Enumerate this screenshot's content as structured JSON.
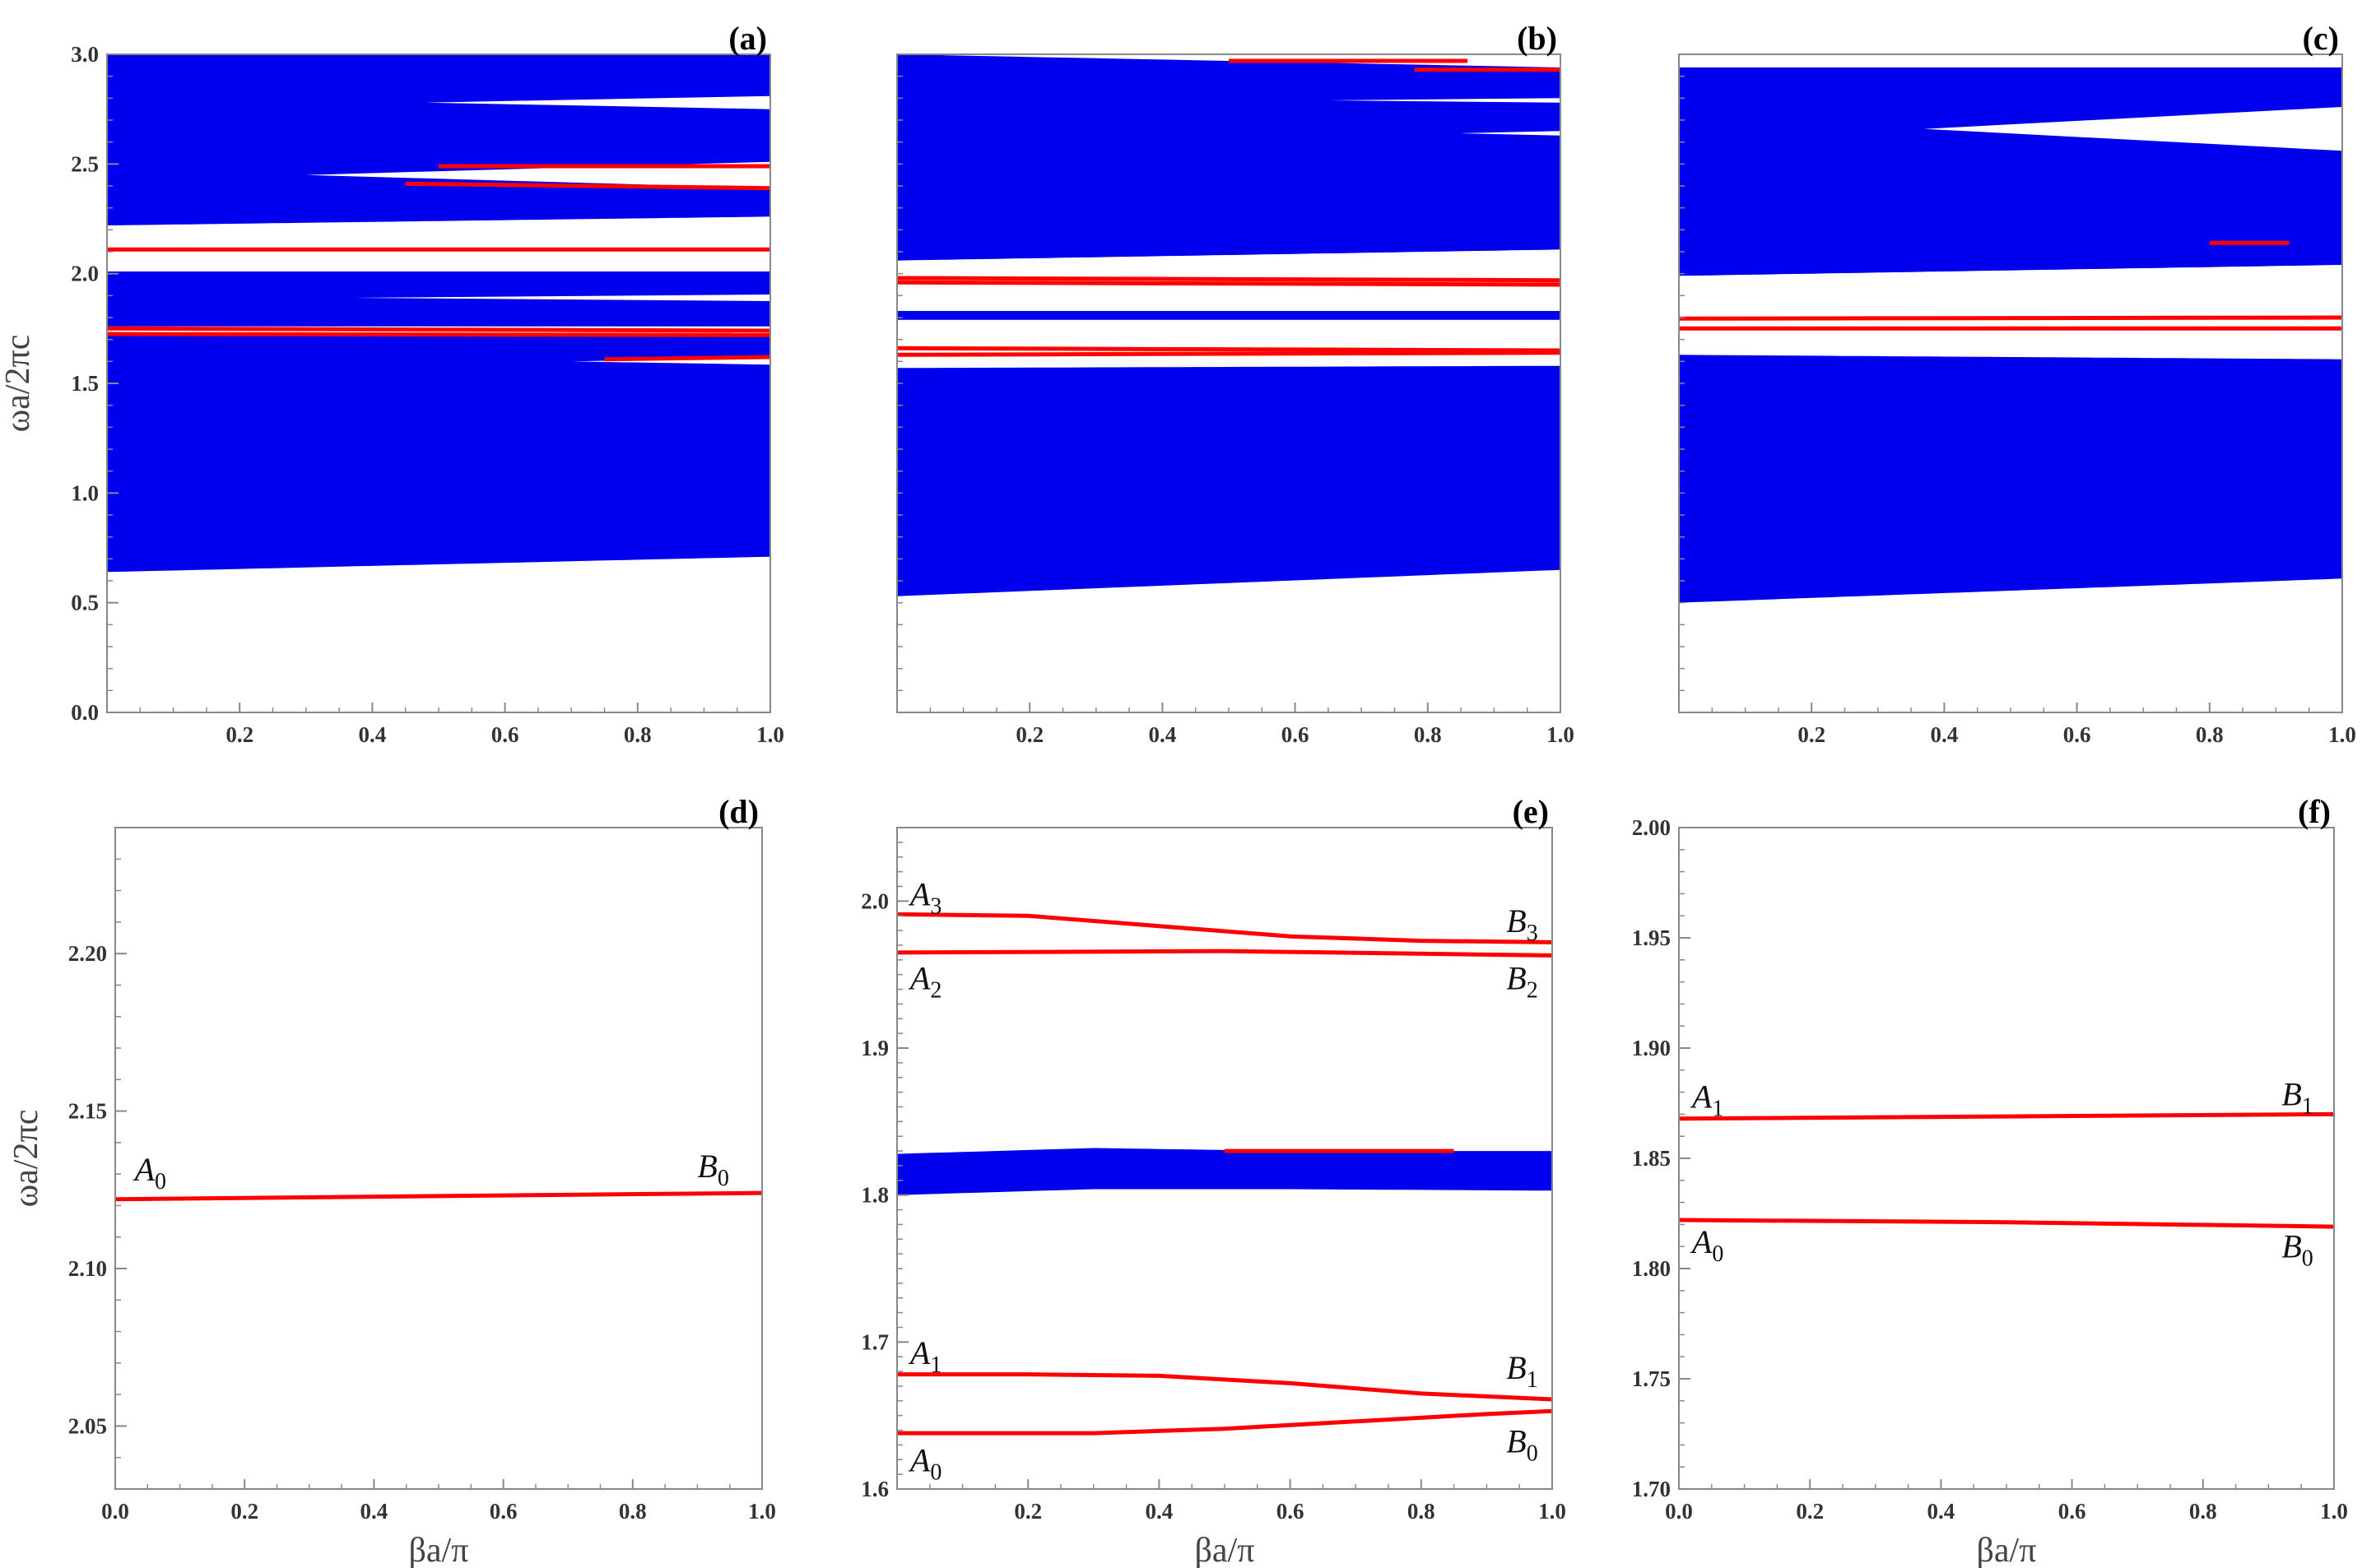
{
  "figure": {
    "ylabel": "ωa/2πc",
    "xlabel": "βa/π",
    "colors": {
      "band": "#0000ee",
      "mode": "#ff0000",
      "axis": "#888888"
    }
  },
  "chart_data": [
    {
      "type": "area",
      "panel": "(a)",
      "xlim": [
        0,
        1
      ],
      "ylim": [
        0,
        3
      ],
      "xticks": [
        {
          "v": 0.2,
          "t": "0.2"
        },
        {
          "v": 0.4,
          "t": "0.4"
        },
        {
          "v": 0.6,
          "t": "0.6"
        },
        {
          "v": 0.8,
          "t": "0.8"
        },
        {
          "v": 1.0,
          "t": "1.0"
        }
      ],
      "yticks": [
        {
          "v": 0,
          "t": "0.0"
        },
        {
          "v": 0.5,
          "t": "0.5"
        },
        {
          "v": 1.0,
          "t": "1.0"
        },
        {
          "v": 1.5,
          "t": "1.5"
        },
        {
          "v": 2.0,
          "t": "2.0"
        },
        {
          "v": 2.5,
          "t": "2.5"
        },
        {
          "v": 3.0,
          "t": "3.0"
        }
      ],
      "ylabel": "ωa/2πc",
      "xlabel": "",
      "bands": [
        {
          "lower": [
            [
              0,
              0.64
            ],
            [
              1,
              0.71
            ]
          ],
          "upper": [
            [
              0,
              1.72
            ],
            [
              1,
              1.72
            ]
          ]
        },
        {
          "lower": [
            [
              0,
              1.76
            ],
            [
              1,
              1.76
            ]
          ],
          "upper": [
            [
              0,
              2.01
            ],
            [
              1,
              2.01
            ]
          ]
        },
        {
          "lower": [
            [
              0,
              2.22
            ],
            [
              1,
              2.26
            ]
          ],
          "upper": [
            [
              0,
              3.0
            ],
            [
              1,
              3.0
            ]
          ]
        }
      ],
      "gaps": [
        {
          "y": 2.78,
          "x0": 0.48,
          "x1": 1.0,
          "w0": 0.0,
          "w1": 0.06
        },
        {
          "y": 2.45,
          "x0": 0.3,
          "x1": 1.0,
          "w0": 0.0,
          "w1": 0.12
        },
        {
          "y": 1.89,
          "x0": 0.37,
          "x1": 1.0,
          "w0": 0.0,
          "w1": 0.03
        },
        {
          "y": 1.6,
          "x0": 0.7,
          "x1": 1.0,
          "w0": 0.0,
          "w1": 0.03
        }
      ],
      "modes": [
        {
          "points": [
            [
              0,
              2.11
            ],
            [
              1,
              2.11
            ]
          ]
        },
        {
          "points": [
            [
              0,
              1.75
            ],
            [
              1,
              1.74
            ]
          ]
        },
        {
          "points": [
            [
              0,
              1.725
            ],
            [
              1,
              1.72
            ]
          ]
        },
        {
          "points": [
            [
              0.5,
              2.49
            ],
            [
              1,
              2.49
            ]
          ]
        },
        {
          "points": [
            [
              0.45,
              2.41
            ],
            [
              1,
              2.39
            ]
          ]
        },
        {
          "points": [
            [
              0.75,
              1.61
            ],
            [
              1,
              1.62
            ]
          ]
        }
      ],
      "labels": []
    },
    {
      "type": "area",
      "panel": "(b)",
      "xlim": [
        0,
        1
      ],
      "ylim": [
        0,
        3
      ],
      "xticks": [
        {
          "v": 0.2,
          "t": "0.2"
        },
        {
          "v": 0.4,
          "t": "0.4"
        },
        {
          "v": 0.6,
          "t": "0.6"
        },
        {
          "v": 0.8,
          "t": "0.8"
        },
        {
          "v": 1.0,
          "t": "1.0"
        }
      ],
      "yticks": [],
      "ylabel": "",
      "xlabel": "",
      "bands": [
        {
          "lower": [
            [
              0,
              0.53
            ],
            [
              1,
              0.65
            ]
          ],
          "upper": [
            [
              0,
              1.57
            ],
            [
              1,
              1.58
            ]
          ]
        },
        {
          "lower": [
            [
              0,
              1.79
            ],
            [
              1,
              1.79
            ]
          ],
          "upper": [
            [
              0,
              1.83
            ],
            [
              1,
              1.83
            ]
          ]
        },
        {
          "lower": [
            [
              0,
              2.06
            ],
            [
              1,
              2.11
            ]
          ],
          "upper": [
            [
              0,
              3.0
            ],
            [
              1,
              2.94
            ]
          ]
        }
      ],
      "gaps": [
        {
          "y": 2.79,
          "x0": 0.65,
          "x1": 1.0,
          "w0": 0.0,
          "w1": 0.02
        },
        {
          "y": 2.64,
          "x0": 0.85,
          "x1": 1.0,
          "w0": 0.0,
          "w1": 0.02
        }
      ],
      "modes": [
        {
          "points": [
            [
              0,
              1.98
            ],
            [
              1,
              1.97
            ]
          ]
        },
        {
          "points": [
            [
              0,
              1.96
            ],
            [
              1,
              1.95
            ]
          ]
        },
        {
          "points": [
            [
              0,
              1.66
            ],
            [
              1,
              1.65
            ]
          ]
        },
        {
          "points": [
            [
              0,
              1.63
            ],
            [
              1,
              1.64
            ]
          ]
        },
        {
          "points": [
            [
              0.5,
              2.97
            ],
            [
              0.86,
              2.97
            ]
          ]
        },
        {
          "points": [
            [
              0.78,
              2.93
            ],
            [
              1,
              2.93
            ]
          ]
        }
      ],
      "labels": []
    },
    {
      "type": "area",
      "panel": "(c)",
      "xlim": [
        0,
        1
      ],
      "ylim": [
        0,
        3
      ],
      "xticks": [
        {
          "v": 0.2,
          "t": "0.2"
        },
        {
          "v": 0.4,
          "t": "0.4"
        },
        {
          "v": 0.6,
          "t": "0.6"
        },
        {
          "v": 0.8,
          "t": "0.8"
        },
        {
          "v": 1.0,
          "t": "1.0"
        }
      ],
      "yticks": [],
      "ylabel": "",
      "xlabel": "",
      "bands": [
        {
          "lower": [
            [
              0,
              0.5
            ],
            [
              1,
              0.61
            ]
          ],
          "upper": [
            [
              0,
              1.63
            ],
            [
              1,
              1.61
            ]
          ]
        },
        {
          "lower": [
            [
              0,
              1.99
            ],
            [
              1,
              2.04
            ]
          ],
          "upper": [
            [
              0,
              2.94
            ],
            [
              1,
              2.94
            ]
          ]
        }
      ],
      "gaps": [
        {
          "y": 2.66,
          "x0": 0.37,
          "x1": 1.0,
          "w0": 0.0,
          "w1": 0.2
        }
      ],
      "modes": [
        {
          "points": [
            [
              0,
              1.795
            ],
            [
              1,
              1.8
            ]
          ]
        },
        {
          "points": [
            [
              0,
              1.75
            ],
            [
              1,
              1.75
            ]
          ]
        },
        {
          "points": [
            [
              0.8,
              2.14
            ],
            [
              0.92,
              2.14
            ]
          ]
        }
      ],
      "labels": []
    },
    {
      "type": "line",
      "panel": "(d)",
      "xlim": [
        0,
        1
      ],
      "ylim": [
        2.03,
        2.24
      ],
      "xticks": [
        {
          "v": 0,
          "t": "0.0"
        },
        {
          "v": 0.2,
          "t": "0.2"
        },
        {
          "v": 0.4,
          "t": "0.4"
        },
        {
          "v": 0.6,
          "t": "0.6"
        },
        {
          "v": 0.8,
          "t": "0.8"
        },
        {
          "v": 1.0,
          "t": "1.0"
        }
      ],
      "yticks": [
        {
          "v": 2.05,
          "t": "2.05"
        },
        {
          "v": 2.1,
          "t": "2.10"
        },
        {
          "v": 2.15,
          "t": "2.15"
        },
        {
          "v": 2.2,
          "t": "2.20"
        }
      ],
      "ylabel": "ωa/2πc",
      "xlabel": "βa/π",
      "bands": [],
      "gaps": [],
      "modes": [
        {
          "points": [
            [
              0,
              2.122
            ],
            [
              0.5,
              2.123
            ],
            [
              1,
              2.124
            ]
          ]
        }
      ],
      "labels": [
        {
          "base": "A",
          "sub": "0",
          "x": 0.03,
          "y": 2.128
        },
        {
          "base": "B",
          "sub": "0",
          "x": 0.9,
          "y": 2.129
        }
      ]
    },
    {
      "type": "line",
      "panel": "(e)",
      "xlim": [
        0,
        1
      ],
      "ylim": [
        1.6,
        2.05
      ],
      "xticks": [
        {
          "v": 0.2,
          "t": "0.2"
        },
        {
          "v": 0.4,
          "t": "0.4"
        },
        {
          "v": 0.6,
          "t": "0.6"
        },
        {
          "v": 0.8,
          "t": "0.8"
        },
        {
          "v": 1.0,
          "t": "1.0"
        }
      ],
      "yticks": [
        {
          "v": 1.6,
          "t": "1.6"
        },
        {
          "v": 1.7,
          "t": "1.7"
        },
        {
          "v": 1.8,
          "t": "1.8"
        },
        {
          "v": 1.9,
          "t": "1.9"
        },
        {
          "v": 2.0,
          "t": "2.0"
        }
      ],
      "ylabel": "",
      "xlabel": "βa/π",
      "bands": [
        {
          "lower": [
            [
              0,
              1.8
            ],
            [
              0.3,
              1.804
            ],
            [
              0.6,
              1.804
            ],
            [
              1,
              1.803
            ]
          ],
          "upper": [
            [
              0,
              1.828
            ],
            [
              0.3,
              1.832
            ],
            [
              0.6,
              1.83
            ],
            [
              1,
              1.83
            ]
          ]
        }
      ],
      "gaps": [],
      "modes": [
        {
          "points": [
            [
              0,
              1.991
            ],
            [
              0.2,
              1.99
            ],
            [
              0.4,
              1.983
            ],
            [
              0.6,
              1.976
            ],
            [
              0.8,
              1.973
            ],
            [
              1,
              1.972
            ]
          ]
        },
        {
          "points": [
            [
              0,
              1.965
            ],
            [
              0.5,
              1.966
            ],
            [
              1,
              1.963
            ]
          ]
        },
        {
          "points": [
            [
              0,
              1.678
            ],
            [
              0.2,
              1.678
            ],
            [
              0.4,
              1.677
            ],
            [
              0.6,
              1.672
            ],
            [
              0.8,
              1.665
            ],
            [
              1,
              1.661
            ]
          ]
        },
        {
          "points": [
            [
              0,
              1.638
            ],
            [
              0.3,
              1.638
            ],
            [
              0.5,
              1.641
            ],
            [
              0.7,
              1.646
            ],
            [
              0.9,
              1.651
            ],
            [
              1,
              1.653
            ]
          ]
        },
        {
          "points": [
            [
              0.5,
              1.83
            ],
            [
              0.85,
              1.83
            ]
          ]
        }
      ],
      "labels": [
        {
          "base": "A",
          "sub": "3",
          "x": 0.02,
          "y": 1.997
        },
        {
          "base": "A",
          "sub": "2",
          "x": 0.02,
          "y": 1.94
        },
        {
          "base": "B",
          "sub": "3",
          "x": 0.93,
          "y": 1.979
        },
        {
          "base": "B",
          "sub": "2",
          "x": 0.93,
          "y": 1.94
        },
        {
          "base": "A",
          "sub": "1",
          "x": 0.02,
          "y": 1.685
        },
        {
          "base": "A",
          "sub": "0",
          "x": 0.02,
          "y": 1.612
        },
        {
          "base": "B",
          "sub": "1",
          "x": 0.93,
          "y": 1.675
        },
        {
          "base": "B",
          "sub": "0",
          "x": 0.93,
          "y": 1.625
        }
      ]
    },
    {
      "type": "line",
      "panel": "(f)",
      "xlim": [
        0,
        1
      ],
      "ylim": [
        1.7,
        2.0
      ],
      "xticks": [
        {
          "v": 0,
          "t": "0.0"
        },
        {
          "v": 0.2,
          "t": "0.2"
        },
        {
          "v": 0.4,
          "t": "0.4"
        },
        {
          "v": 0.6,
          "t": "0.6"
        },
        {
          "v": 0.8,
          "t": "0.8"
        },
        {
          "v": 1.0,
          "t": "1.0"
        }
      ],
      "yticks": [
        {
          "v": 1.7,
          "t": "1.70"
        },
        {
          "v": 1.75,
          "t": "1.75"
        },
        {
          "v": 1.8,
          "t": "1.80"
        },
        {
          "v": 1.85,
          "t": "1.85"
        },
        {
          "v": 1.9,
          "t": "1.90"
        },
        {
          "v": 1.95,
          "t": "1.95"
        },
        {
          "v": 2.0,
          "t": "2.00"
        }
      ],
      "ylabel": "",
      "xlabel": "βa/π",
      "bands": [],
      "gaps": [],
      "modes": [
        {
          "points": [
            [
              0,
              1.868
            ],
            [
              0.5,
              1.869
            ],
            [
              1,
              1.87
            ]
          ]
        },
        {
          "points": [
            [
              0,
              1.822
            ],
            [
              0.5,
              1.821
            ],
            [
              1,
              1.819
            ]
          ]
        }
      ],
      "labels": [
        {
          "base": "A",
          "sub": "1",
          "x": 0.02,
          "y": 1.873
        },
        {
          "base": "B",
          "sub": "1",
          "x": 0.92,
          "y": 1.874
        },
        {
          "base": "A",
          "sub": "0",
          "x": 0.02,
          "y": 1.807
        },
        {
          "base": "B",
          "sub": "0",
          "x": 0.92,
          "y": 1.805
        }
      ]
    }
  ]
}
